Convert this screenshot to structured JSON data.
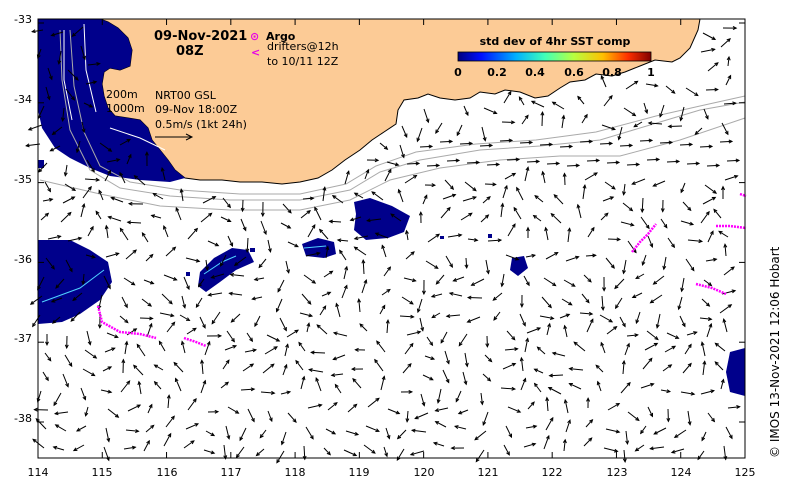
{
  "header": {
    "date": "09-Nov-2021",
    "time": "08Z"
  },
  "legend_argo": {
    "symbol": "⊙",
    "label": "Argo",
    "drifter_symbol": "<",
    "drifter_line1": "drifters@12h",
    "drifter_line2": "to 10/11 12Z"
  },
  "depth_labels": [
    "200m",
    "1000m"
  ],
  "product": {
    "line1": "NRT00 GSL",
    "line2": "09-Nov 18:00Z",
    "line3": "0.5m/s (1kt 24h)"
  },
  "colorbar": {
    "title": "std dev of 4hr SST comp",
    "ticks": [
      "0",
      "0.2",
      "0.4",
      "0.6",
      "0.8",
      "1"
    ],
    "colors": [
      "#00007f",
      "#0010ff",
      "#00b0ff",
      "#40ffb8",
      "#b8ff40",
      "#ffc000",
      "#ff3000",
      "#800000"
    ]
  },
  "x_ticks": [
    "114",
    "115",
    "116",
    "117",
    "118",
    "119",
    "120",
    "121",
    "122",
    "123",
    "124",
    "125"
  ],
  "y_ticks": [
    "-33",
    "-34",
    "-35",
    "-36",
    "-37",
    "-38"
  ],
  "credit": "© IMOS 13-Nov-2021 12:06 Hobart",
  "colors": {
    "land": "#fccb96",
    "sst_patch": "#00008b",
    "drifter": "#ff00ff",
    "contour": "#aaaaaa"
  }
}
